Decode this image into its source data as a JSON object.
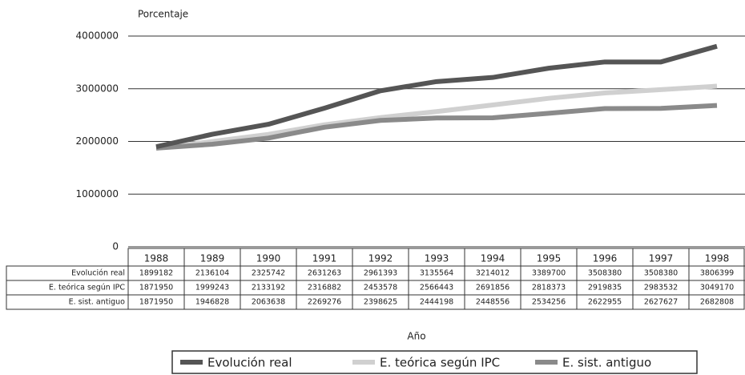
{
  "chart_data": {
    "type": "line",
    "y_label": "Porcentaje",
    "x_label": "Año",
    "categories": [
      "1988",
      "1989",
      "1990",
      "1991",
      "1992",
      "1993",
      "1994",
      "1995",
      "1996",
      "1997",
      "1998"
    ],
    "series": [
      {
        "name": "Evolución real",
        "color": "#555555",
        "values": [
          1899182,
          2136104,
          2325742,
          2631263,
          2961393,
          3135564,
          3214012,
          3389700,
          3508380,
          3508380,
          3806399
        ]
      },
      {
        "name": "E. teórica según IPC",
        "color": "#d0d0d0",
        "values": [
          1871950,
          1999243,
          2133192,
          2316882,
          2453578,
          2566443,
          2691856,
          2818373,
          2919835,
          2983532,
          3049170
        ]
      },
      {
        "name": "E. sist. antiguo",
        "color": "#8a8a8a",
        "values": [
          1871950,
          1946828,
          2063638,
          2269276,
          2398625,
          2444198,
          2448556,
          2534256,
          2622955,
          2627627,
          2682808
        ]
      }
    ],
    "ylim": [
      0,
      4000000
    ],
    "yticks": [
      0,
      1000000,
      2000000,
      3000000,
      4000000
    ],
    "grid": true
  }
}
